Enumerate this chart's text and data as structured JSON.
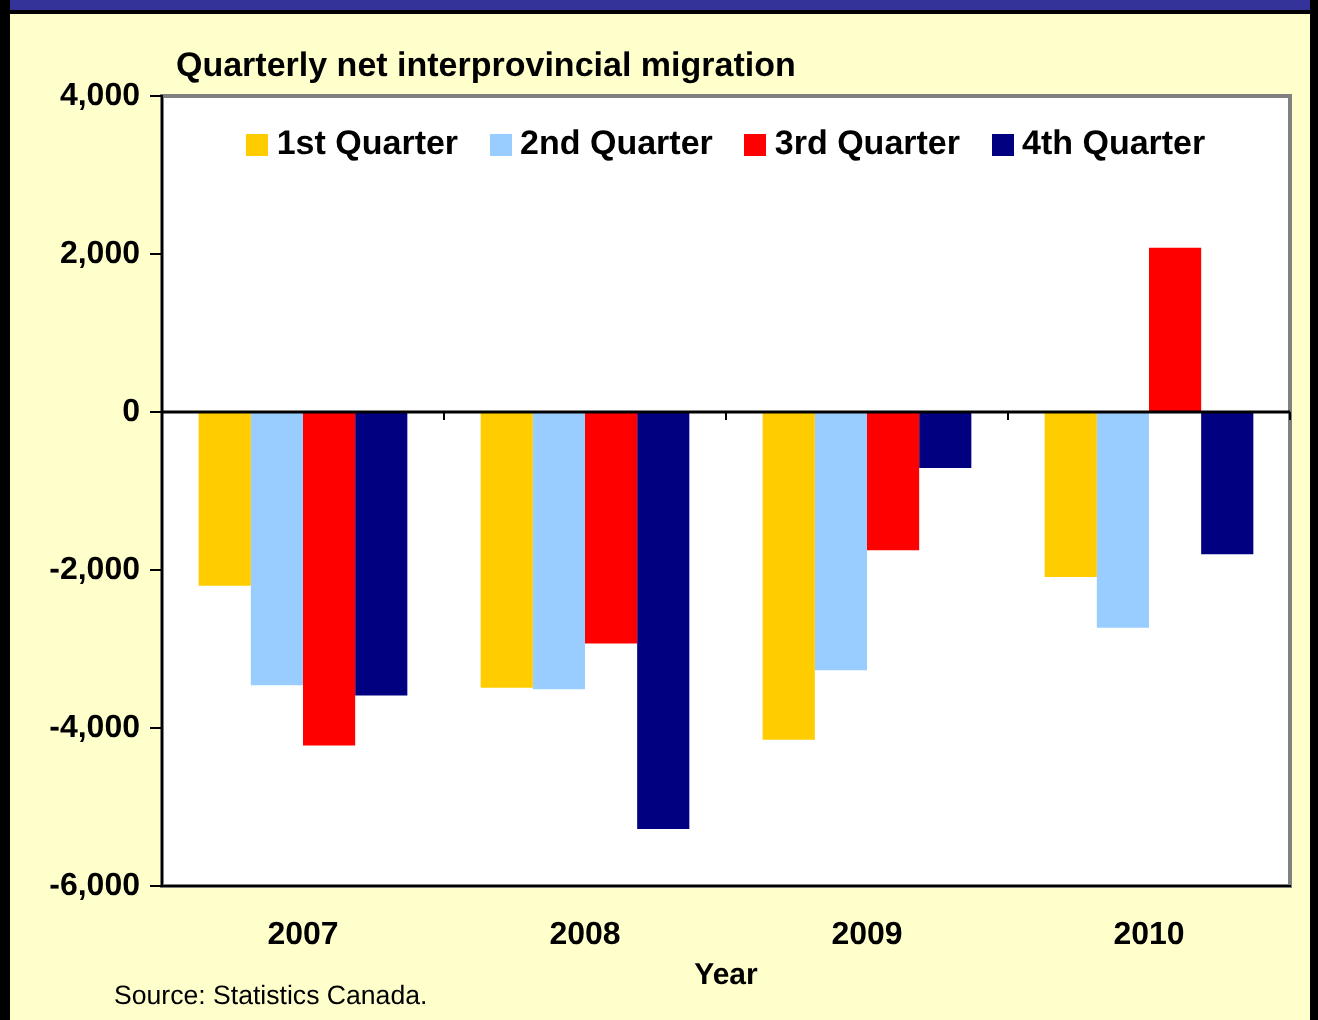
{
  "chart_data": {
    "type": "bar",
    "title": "Quarterly net interprovincial migration",
    "xlabel": "Year",
    "annotations": [
      "Source: Statistics Canada."
    ],
    "categories": [
      "2007",
      "2008",
      "2009",
      "2010"
    ],
    "series": [
      {
        "name": "1st Quarter",
        "color": "#ffcc00",
        "values": [
          -2200,
          -3490,
          -4150,
          -2090
        ]
      },
      {
        "name": "2nd Quarter",
        "color": "#99ccff",
        "values": [
          -3460,
          -3510,
          -3270,
          -2730
        ]
      },
      {
        "name": "3rd Quarter",
        "color": "#ff0000",
        "values": [
          -4220,
          -2930,
          -1750,
          2080
        ]
      },
      {
        "name": "4th Quarter",
        "color": "#000080",
        "values": [
          -3590,
          -5280,
          -710,
          -1800
        ]
      }
    ],
    "ylim": [
      -6000,
      4000
    ],
    "yticks": [
      {
        "value": -6000,
        "label": "-6,000"
      },
      {
        "value": -4000,
        "label": "-4,000"
      },
      {
        "value": -2000,
        "label": "-2,000"
      },
      {
        "value": 0,
        "label": "0"
      },
      {
        "value": 2000,
        "label": "2,000"
      },
      {
        "value": 4000,
        "label": "4,000"
      }
    ],
    "ref_lines": [
      {
        "axis": "y",
        "value": 0,
        "color": "#000000"
      }
    ],
    "grid": false,
    "legend": "top"
  }
}
